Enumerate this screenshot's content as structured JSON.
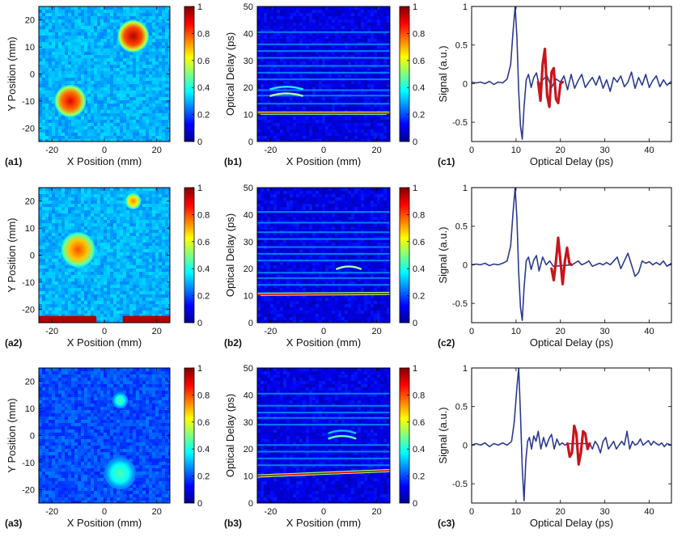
{
  "figure": {
    "rows": 3,
    "colormap": "jet"
  },
  "chart_data": [
    {
      "id": "a1",
      "panel_label": "(a1)",
      "type": "heatmap",
      "xlabel": "X Position (mm)",
      "ylabel": "Y Position (mm)",
      "xlim": [
        -25,
        25
      ],
      "ylim": [
        -25,
        25
      ],
      "xticks": [
        -20,
        0,
        20
      ],
      "yticks": [
        -20,
        -10,
        0,
        10,
        20
      ],
      "colorbar": {
        "range": [
          0,
          1
        ],
        "ticks": [
          0,
          0.2,
          0.4,
          0.6,
          0.8,
          1
        ]
      },
      "background_level": 0.3,
      "features": [
        {
          "shape": "disk",
          "cx": 11,
          "cy": 14,
          "r": 6,
          "value": 0.95
        },
        {
          "shape": "disk",
          "cx": -13,
          "cy": -10,
          "r": 6,
          "value": 0.9
        }
      ]
    },
    {
      "id": "b1",
      "panel_label": "(b1)",
      "type": "heatmap",
      "xlabel": "X Position (mm)",
      "ylabel": "Optical Delay (ps)",
      "xlim": [
        -25,
        25
      ],
      "ylim": [
        0,
        50
      ],
      "xticks": [
        -20,
        0,
        20
      ],
      "yticks": [
        0,
        10,
        20,
        30,
        40,
        50
      ],
      "colorbar": {
        "range": [
          0,
          1
        ],
        "ticks": [
          0,
          0.2,
          0.4,
          0.6,
          0.8,
          1
        ]
      },
      "background_level": 0.1,
      "features": [
        {
          "shape": "line",
          "y0": 10.5,
          "y1": 10.5,
          "value": 0.9
        },
        {
          "shape": "arc",
          "x0": -20,
          "x1": -8,
          "y": 17.5,
          "value": 0.5
        },
        {
          "shape": "arc",
          "x0": -20,
          "x1": -8,
          "y": 20,
          "value": 0.35
        }
      ],
      "faint_lines": [
        14,
        17,
        19,
        23,
        25.5,
        28,
        31,
        33.5,
        36,
        40.5
      ]
    },
    {
      "id": "c1",
      "panel_label": "(c1)",
      "type": "line",
      "xlabel": "Optical Delay (ps)",
      "ylabel": "Signal (a.u.)",
      "xlim": [
        0,
        45
      ],
      "ylim": [
        -0.75,
        1
      ],
      "xticks": [
        0,
        10,
        20,
        30,
        40
      ],
      "yticks": [
        -0.5,
        0,
        0.5,
        1
      ],
      "series": [
        {
          "color": "#2b3a8f",
          "x": [
            0,
            1,
            2,
            3,
            4,
            5,
            6,
            7,
            8,
            8.8,
            9.3,
            9.8,
            10.2,
            10.6,
            11.0,
            11.4,
            11.8,
            12.3,
            12.8,
            13.4,
            14.0,
            14.6,
            15.2,
            16.0,
            17.0,
            18.0,
            19.0,
            20.0,
            20.8,
            21.6,
            22.4,
            23.2,
            24.0,
            24.8,
            25.6,
            26.4,
            27.2,
            28.0,
            28.8,
            29.6,
            30.4,
            31.2,
            32.0,
            32.8,
            33.6,
            34.4,
            35.2,
            36.0,
            36.8,
            37.6,
            38.4,
            39.2,
            40.0,
            40.8,
            41.6,
            42.4,
            43.2,
            44.0,
            45.0
          ],
          "y": [
            0.02,
            0.01,
            0.02,
            0.0,
            0.03,
            -0.01,
            0.02,
            0.01,
            0.06,
            0.25,
            0.65,
            1.0,
            0.6,
            -0.1,
            -0.55,
            -0.72,
            -0.3,
            0.05,
            0.12,
            -0.05,
            0.08,
            0.14,
            -0.02,
            0.05,
            0.1,
            -0.05,
            0.06,
            0.02,
            0.1,
            -0.08,
            0.12,
            -0.06,
            0.04,
            0.12,
            -0.05,
            0.02,
            0.08,
            -0.02,
            0.1,
            -0.06,
            0.05,
            -0.1,
            0.08,
            0.02,
            0.1,
            -0.04,
            0.02,
            0.15,
            -0.06,
            0.08,
            -0.02,
            0.12,
            -0.05,
            0.04,
            0.1,
            -0.04,
            0.05,
            -0.02,
            0.03
          ]
        },
        {
          "color": "#c8151b",
          "x": [
            15.0,
            15.5,
            16.0,
            16.5,
            17.0,
            17.5,
            18.0,
            18.5,
            19.0,
            19.5,
            20.0,
            20.5
          ],
          "y": [
            0.02,
            -0.22,
            0.25,
            0.45,
            -0.15,
            -0.3,
            0.15,
            0.2,
            -0.2,
            -0.25,
            0.0,
            0.02
          ]
        }
      ]
    },
    {
      "id": "a2",
      "panel_label": "(a2)",
      "type": "heatmap",
      "xlabel": "X Position (mm)",
      "ylabel": "Y Position (mm)",
      "xlim": [
        -25,
        25
      ],
      "ylim": [
        -25,
        25
      ],
      "xticks": [
        -20,
        0,
        20
      ],
      "yticks": [
        -20,
        -10,
        0,
        10,
        20
      ],
      "colorbar": {
        "range": [
          0,
          1
        ],
        "ticks": [
          0,
          0.2,
          0.4,
          0.6,
          0.8,
          1
        ]
      },
      "background_level": 0.3,
      "features": [
        {
          "shape": "disk",
          "cx": 11,
          "cy": 20,
          "r": 3,
          "value": 0.75
        },
        {
          "shape": "disk",
          "cx": -10,
          "cy": 2,
          "r": 6.5,
          "value": 0.8
        },
        {
          "shape": "band",
          "x0": -25,
          "x1": -3,
          "y0": -25,
          "y1": -22.5,
          "value": 0.95
        },
        {
          "shape": "band",
          "x0": 7,
          "x1": 25,
          "y0": -25,
          "y1": -22.5,
          "value": 0.95
        }
      ]
    },
    {
      "id": "b2",
      "panel_label": "(b2)",
      "type": "heatmap",
      "xlabel": "X Position (mm)",
      "ylabel": "Optical Delay (ps)",
      "xlim": [
        -25,
        25
      ],
      "ylim": [
        0,
        50
      ],
      "xticks": [
        -20,
        0,
        20
      ],
      "yticks": [
        0,
        10,
        20,
        30,
        40,
        50
      ],
      "colorbar": {
        "range": [
          0,
          1
        ],
        "ticks": [
          0,
          0.2,
          0.4,
          0.6,
          0.8,
          1
        ]
      },
      "background_level": 0.1,
      "features": [
        {
          "shape": "line",
          "y0": 10.5,
          "y1": 10.8,
          "value": 0.9
        },
        {
          "shape": "arc",
          "x0": 5,
          "x1": 14,
          "y": 20.5,
          "value": 0.5
        }
      ],
      "faint_lines": [
        14,
        16.5,
        18.5,
        23,
        25.5,
        28,
        31,
        33.5,
        37,
        41
      ]
    },
    {
      "id": "c2",
      "panel_label": "(c2)",
      "type": "line",
      "xlabel": "Optical Delay (ps)",
      "ylabel": "Signal (a.u.)",
      "xlim": [
        0,
        45
      ],
      "ylim": [
        -0.75,
        1
      ],
      "xticks": [
        0,
        10,
        20,
        30,
        40
      ],
      "yticks": [
        -0.5,
        0,
        0.5,
        1
      ],
      "series": [
        {
          "color": "#2b3a8f",
          "x": [
            0,
            1,
            2,
            3,
            4,
            5,
            6,
            7,
            8,
            8.8,
            9.3,
            9.8,
            10.2,
            10.6,
            11.0,
            11.4,
            11.8,
            12.3,
            12.8,
            13.4,
            14.0,
            14.6,
            15.2,
            16.0,
            16.8,
            17.6,
            18.4,
            22.6,
            23.2,
            24.0,
            24.8,
            25.6,
            26.4,
            27.2,
            28.0,
            28.8,
            29.6,
            30.4,
            31.2,
            32.0,
            32.8,
            33.6,
            34.4,
            35.2,
            36.0,
            36.8,
            37.6,
            38.4,
            39.2,
            40.0,
            40.8,
            41.6,
            42.4,
            43.2,
            44.0,
            45.0
          ],
          "y": [
            0.0,
            0.01,
            0.0,
            0.02,
            -0.01,
            0.01,
            0.0,
            0.02,
            0.05,
            0.25,
            0.65,
            1.0,
            0.6,
            -0.1,
            -0.55,
            -0.72,
            -0.3,
            0.05,
            0.1,
            -0.06,
            0.06,
            0.12,
            -0.08,
            0.1,
            0.0,
            0.05,
            -0.02,
            0.0,
            0.02,
            0.05,
            0.0,
            0.02,
            0.05,
            -0.02,
            0.0,
            0.02,
            0.0,
            0.03,
            0.0,
            0.05,
            0.1,
            -0.05,
            0.05,
            0.15,
            0.0,
            -0.15,
            -0.1,
            0.05,
            0.02,
            0.04,
            0.0,
            0.03,
            0.0,
            0.05,
            -0.02,
            0.02
          ]
        },
        {
          "color": "#c8151b",
          "x": [
            18.0,
            18.5,
            19.0,
            19.5,
            20.0,
            20.5,
            21.0,
            21.5,
            22.0,
            22.5
          ],
          "y": [
            -0.05,
            -0.2,
            0.05,
            0.35,
            0.05,
            -0.25,
            0.05,
            0.22,
            0.02,
            0.0
          ]
        }
      ]
    },
    {
      "id": "a3",
      "panel_label": "(a3)",
      "type": "heatmap",
      "xlabel": "X Position (mm)",
      "ylabel": "Y Position (mm)",
      "xlim": [
        -25,
        25
      ],
      "ylim": [
        -25,
        25
      ],
      "xticks": [
        -20,
        0,
        20
      ],
      "yticks": [
        -20,
        -10,
        0,
        10,
        20
      ],
      "colorbar": {
        "range": [
          0,
          1
        ],
        "ticks": [
          0,
          0.2,
          0.4,
          0.6,
          0.8,
          1
        ]
      },
      "background_level": 0.2,
      "features": [
        {
          "shape": "disk",
          "cx": 6,
          "cy": 13,
          "r": 3,
          "value": 0.45
        },
        {
          "shape": "disk",
          "cx": 6,
          "cy": -14,
          "r": 6,
          "value": 0.45
        }
      ]
    },
    {
      "id": "b3",
      "panel_label": "(b3)",
      "type": "heatmap",
      "xlabel": "X Position (mm)",
      "ylabel": "Optical Delay (ps)",
      "xlim": [
        -25,
        25
      ],
      "ylim": [
        0,
        50
      ],
      "xticks": [
        -20,
        0,
        20
      ],
      "yticks": [
        0,
        10,
        20,
        30,
        40,
        50
      ],
      "colorbar": {
        "range": [
          0,
          1
        ],
        "ticks": [
          0,
          0.2,
          0.4,
          0.6,
          0.8,
          1
        ]
      },
      "background_level": 0.1,
      "features": [
        {
          "shape": "line",
          "y0": 10,
          "y1": 12,
          "value": 0.9
        },
        {
          "shape": "arc",
          "x0": 2,
          "x1": 12,
          "y": 24.5,
          "value": 0.45
        },
        {
          "shape": "arc",
          "x0": 2,
          "x1": 12,
          "y": 26.5,
          "value": 0.3
        }
      ],
      "faint_lines": [
        14,
        16.5,
        19,
        21.5,
        29,
        31.5,
        33.5,
        36,
        40.5
      ]
    },
    {
      "id": "c3",
      "panel_label": "(c3)",
      "type": "line",
      "xlabel": "Optical Delay (ps)",
      "ylabel": "Signal (a.u.)",
      "xlim": [
        0,
        45
      ],
      "ylim": [
        -0.75,
        1
      ],
      "xticks": [
        0,
        10,
        20,
        30,
        40
      ],
      "yticks": [
        -0.5,
        0,
        0.5,
        1
      ],
      "series": [
        {
          "color": "#2b3a8f",
          "x": [
            0,
            1,
            2,
            3,
            4,
            5,
            6,
            7,
            8,
            9,
            9.6,
            10.2,
            10.6,
            11.0,
            11.4,
            11.8,
            12.2,
            12.6,
            13.0,
            13.5,
            14.0,
            14.5,
            15.0,
            15.6,
            16.2,
            16.8,
            17.4,
            18.0,
            18.6,
            19.2,
            19.8,
            20.4,
            21.0,
            21.6,
            26.6,
            27.2,
            27.8,
            28.4,
            29.0,
            29.6,
            30.2,
            30.8,
            31.4,
            32.0,
            32.6,
            33.2,
            33.8,
            34.4,
            35.0,
            35.6,
            36.2,
            36.8,
            37.4,
            38.0,
            38.6,
            39.2,
            39.8,
            40.4,
            41.0,
            41.6,
            42.2,
            42.8,
            43.4,
            44.0,
            45.0
          ],
          "y": [
            0.0,
            0.02,
            0.0,
            0.03,
            -0.02,
            0.02,
            0.0,
            0.03,
            0.0,
            0.05,
            0.3,
            0.75,
            1.0,
            0.4,
            -0.3,
            -0.72,
            -0.2,
            0.05,
            0.1,
            -0.05,
            0.12,
            0.05,
            0.18,
            -0.05,
            0.1,
            -0.02,
            0.08,
            0.14,
            -0.05,
            0.08,
            0.0,
            0.03,
            0.0,
            0.02,
            0.02,
            -0.05,
            0.05,
            0.0,
            -0.1,
            0.05,
            0.1,
            -0.05,
            0.0,
            0.05,
            -0.05,
            0.0,
            0.05,
            0.0,
            0.18,
            -0.05,
            0.05,
            0.0,
            0.02,
            0.08,
            0.0,
            0.03,
            0.06,
            0.0,
            0.05,
            0.02,
            0.0,
            0.03,
            -0.02,
            0.02,
            0.0
          ]
        },
        {
          "color": "#c8151b",
          "x": [
            21.6,
            22.1,
            22.6,
            23.1,
            23.6,
            24.1,
            24.6,
            25.1,
            25.6,
            26.1,
            26.6
          ],
          "y": [
            0.02,
            -0.15,
            -0.1,
            0.25,
            0.15,
            -0.25,
            -0.1,
            0.18,
            0.15,
            -0.05,
            0.02
          ]
        }
      ]
    }
  ]
}
